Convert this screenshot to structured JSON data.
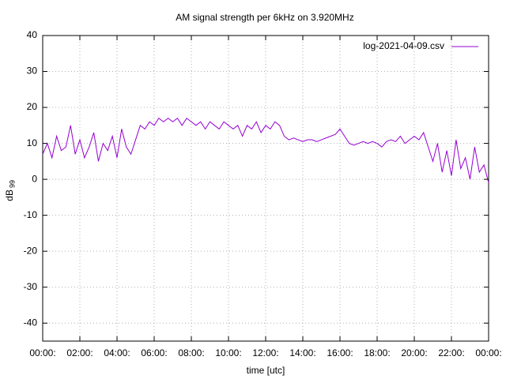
{
  "chart_data": {
    "type": "line",
    "title": "AM signal strength per 6kHz on 3.920MHz",
    "xlabel": "time [utc]",
    "ylabel": "dB",
    "ylabel_sub": "99",
    "legend": "top-right",
    "grid": true,
    "xlim": [
      0,
      24
    ],
    "ylim": [
      -45,
      40
    ],
    "yticks": [
      -40,
      -30,
      -20,
      -10,
      0,
      10,
      20,
      30,
      40
    ],
    "xticks": [
      {
        "value": 0,
        "label": "00:00:"
      },
      {
        "value": 2,
        "label": "02:00:"
      },
      {
        "value": 4,
        "label": "04:00:"
      },
      {
        "value": 6,
        "label": "06:00:"
      },
      {
        "value": 8,
        "label": "08:00:"
      },
      {
        "value": 10,
        "label": "10:00:"
      },
      {
        "value": 12,
        "label": "12:00:"
      },
      {
        "value": 14,
        "label": "14:00:"
      },
      {
        "value": 16,
        "label": "16:00:"
      },
      {
        "value": 18,
        "label": "18:00:"
      },
      {
        "value": 20,
        "label": "20:00:"
      },
      {
        "value": 22,
        "label": "22:00:"
      },
      {
        "value": 24,
        "label": "00:00:"
      }
    ],
    "x": [
      0,
      0.25,
      0.5,
      0.75,
      1,
      1.25,
      1.5,
      1.75,
      2,
      2.25,
      2.5,
      2.75,
      3,
      3.25,
      3.5,
      3.75,
      4,
      4.25,
      4.5,
      4.75,
      5,
      5.25,
      5.5,
      5.75,
      6,
      6.25,
      6.5,
      6.75,
      7,
      7.25,
      7.5,
      7.75,
      8,
      8.25,
      8.5,
      8.75,
      9,
      9.25,
      9.5,
      9.75,
      10,
      10.25,
      10.5,
      10.75,
      11,
      11.25,
      11.5,
      11.75,
      12,
      12.25,
      12.5,
      12.75,
      13,
      13.25,
      13.5,
      13.75,
      14,
      14.25,
      14.5,
      14.75,
      15,
      15.25,
      15.5,
      15.75,
      16,
      16.25,
      16.5,
      16.75,
      17,
      17.25,
      17.5,
      17.75,
      18,
      18.25,
      18.5,
      18.75,
      19,
      19.25,
      19.5,
      19.75,
      20,
      20.25,
      20.5,
      20.75,
      21,
      21.25,
      21.5,
      21.75,
      22,
      22.25,
      22.5,
      22.75,
      23,
      23.25,
      23.5,
      23.75,
      24
    ],
    "series": [
      {
        "name": "log-2021-04-09.csv",
        "color": "#9400d3",
        "values": [
          7,
          10,
          6,
          12,
          8,
          9,
          15,
          7,
          11,
          6,
          9,
          13,
          5,
          10,
          8,
          12,
          6,
          14,
          9,
          7,
          11,
          15,
          14,
          16,
          15,
          17,
          16,
          17,
          16,
          17,
          15,
          17,
          16,
          15,
          16,
          14,
          16,
          15,
          14,
          16,
          15,
          14,
          15,
          12,
          15,
          14,
          16,
          13,
          15,
          14,
          16,
          15,
          12,
          11,
          11.5,
          11,
          10.5,
          11,
          11,
          10.5,
          11,
          11.5,
          12,
          12.5,
          14,
          12,
          10,
          9.5,
          10,
          10.5,
          10,
          10.5,
          10,
          9,
          10.5,
          11,
          10.5,
          12,
          10,
          11,
          12,
          11,
          13,
          9,
          5,
          10,
          2,
          8,
          1,
          11,
          3,
          6,
          0,
          9,
          2,
          4,
          -1
        ]
      }
    ]
  }
}
